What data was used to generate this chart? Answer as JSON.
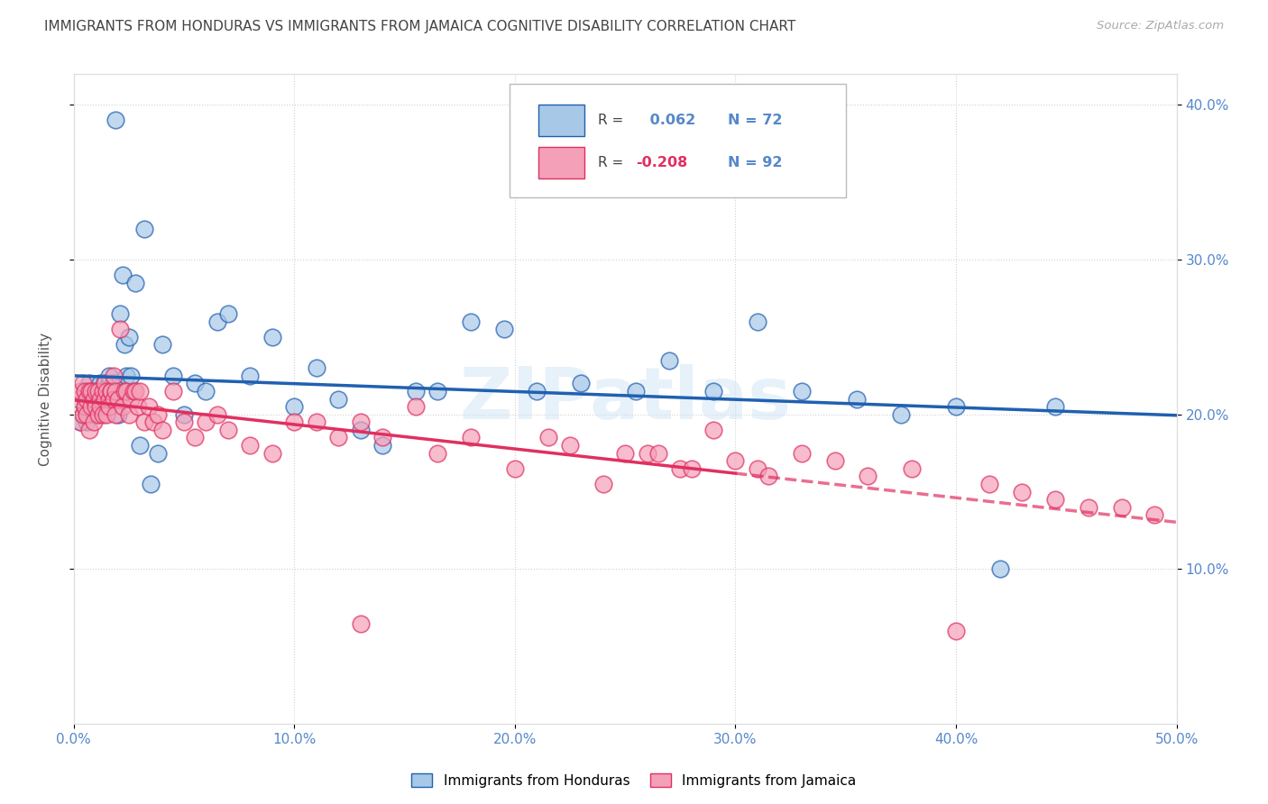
{
  "title": "IMMIGRANTS FROM HONDURAS VS IMMIGRANTS FROM JAMAICA COGNITIVE DISABILITY CORRELATION CHART",
  "source": "Source: ZipAtlas.com",
  "ylabel": "Cognitive Disability",
  "xlim": [
    0.0,
    0.5
  ],
  "ylim": [
    0.0,
    0.42
  ],
  "xticks": [
    0.0,
    0.1,
    0.2,
    0.3,
    0.4,
    0.5
  ],
  "yticks": [
    0.1,
    0.2,
    0.3,
    0.4
  ],
  "xticklabels": [
    "0.0%",
    "10.0%",
    "20.0%",
    "30.0%",
    "40.0%",
    "50.0%"
  ],
  "yticklabels": [
    "10.0%",
    "20.0%",
    "30.0%",
    "40.0%"
  ],
  "legend_labels": [
    "Immigrants from Honduras",
    "Immigrants from Jamaica"
  ],
  "R_honduras": 0.062,
  "N_honduras": 72,
  "R_jamaica": -0.208,
  "N_jamaica": 92,
  "color_honduras": "#a8c8e8",
  "color_jamaica": "#f4a0b8",
  "line_color_honduras": "#2060b0",
  "line_color_jamaica": "#e03060",
  "watermark": "ZIPatlas",
  "background_color": "#ffffff",
  "grid_color": "#cccccc",
  "title_color": "#444444",
  "axis_label_color": "#5588cc",
  "honduras_x": [
    0.003,
    0.004,
    0.005,
    0.005,
    0.006,
    0.006,
    0.007,
    0.007,
    0.007,
    0.008,
    0.008,
    0.009,
    0.009,
    0.01,
    0.01,
    0.011,
    0.011,
    0.012,
    0.012,
    0.013,
    0.013,
    0.014,
    0.015,
    0.015,
    0.016,
    0.016,
    0.017,
    0.018,
    0.018,
    0.019,
    0.02,
    0.021,
    0.022,
    0.023,
    0.024,
    0.025,
    0.026,
    0.028,
    0.03,
    0.032,
    0.035,
    0.038,
    0.04,
    0.045,
    0.05,
    0.055,
    0.06,
    0.065,
    0.07,
    0.08,
    0.09,
    0.1,
    0.11,
    0.12,
    0.13,
    0.14,
    0.155,
    0.165,
    0.18,
    0.195,
    0.21,
    0.23,
    0.255,
    0.27,
    0.29,
    0.31,
    0.33,
    0.355,
    0.375,
    0.4,
    0.42,
    0.445
  ],
  "honduras_y": [
    0.195,
    0.2,
    0.205,
    0.21,
    0.195,
    0.215,
    0.2,
    0.205,
    0.22,
    0.21,
    0.215,
    0.205,
    0.215,
    0.2,
    0.21,
    0.205,
    0.215,
    0.21,
    0.22,
    0.205,
    0.215,
    0.22,
    0.215,
    0.21,
    0.22,
    0.225,
    0.21,
    0.215,
    0.22,
    0.39,
    0.2,
    0.265,
    0.29,
    0.245,
    0.225,
    0.25,
    0.225,
    0.285,
    0.18,
    0.32,
    0.155,
    0.175,
    0.245,
    0.225,
    0.2,
    0.22,
    0.215,
    0.26,
    0.265,
    0.225,
    0.25,
    0.205,
    0.23,
    0.21,
    0.19,
    0.18,
    0.215,
    0.215,
    0.26,
    0.255,
    0.215,
    0.22,
    0.215,
    0.235,
    0.215,
    0.26,
    0.215,
    0.21,
    0.2,
    0.205,
    0.1,
    0.205
  ],
  "jamaica_x": [
    0.002,
    0.003,
    0.003,
    0.004,
    0.004,
    0.005,
    0.005,
    0.006,
    0.006,
    0.007,
    0.007,
    0.008,
    0.008,
    0.009,
    0.009,
    0.01,
    0.01,
    0.011,
    0.011,
    0.012,
    0.012,
    0.013,
    0.013,
    0.014,
    0.014,
    0.015,
    0.015,
    0.016,
    0.016,
    0.017,
    0.017,
    0.018,
    0.018,
    0.019,
    0.019,
    0.02,
    0.021,
    0.022,
    0.023,
    0.024,
    0.025,
    0.026,
    0.027,
    0.028,
    0.029,
    0.03,
    0.032,
    0.034,
    0.036,
    0.038,
    0.04,
    0.045,
    0.05,
    0.055,
    0.06,
    0.065,
    0.07,
    0.08,
    0.09,
    0.1,
    0.11,
    0.12,
    0.13,
    0.14,
    0.155,
    0.165,
    0.18,
    0.2,
    0.215,
    0.225,
    0.24,
    0.26,
    0.275,
    0.29,
    0.31,
    0.33,
    0.345,
    0.36,
    0.38,
    0.4,
    0.415,
    0.43,
    0.445,
    0.46,
    0.475,
    0.49,
    0.25,
    0.265,
    0.28,
    0.3,
    0.315,
    0.13
  ],
  "jamaica_y": [
    0.21,
    0.215,
    0.195,
    0.2,
    0.22,
    0.205,
    0.215,
    0.2,
    0.21,
    0.215,
    0.19,
    0.205,
    0.215,
    0.195,
    0.21,
    0.205,
    0.215,
    0.2,
    0.215,
    0.21,
    0.205,
    0.215,
    0.2,
    0.21,
    0.22,
    0.2,
    0.215,
    0.21,
    0.205,
    0.215,
    0.215,
    0.21,
    0.225,
    0.2,
    0.215,
    0.21,
    0.255,
    0.205,
    0.215,
    0.215,
    0.2,
    0.21,
    0.215,
    0.215,
    0.205,
    0.215,
    0.195,
    0.205,
    0.195,
    0.2,
    0.19,
    0.215,
    0.195,
    0.185,
    0.195,
    0.2,
    0.19,
    0.18,
    0.175,
    0.195,
    0.195,
    0.185,
    0.195,
    0.185,
    0.205,
    0.175,
    0.185,
    0.165,
    0.185,
    0.18,
    0.155,
    0.175,
    0.165,
    0.19,
    0.165,
    0.175,
    0.17,
    0.16,
    0.165,
    0.06,
    0.155,
    0.15,
    0.145,
    0.14,
    0.14,
    0.135,
    0.175,
    0.175,
    0.165,
    0.17,
    0.16,
    0.065
  ]
}
